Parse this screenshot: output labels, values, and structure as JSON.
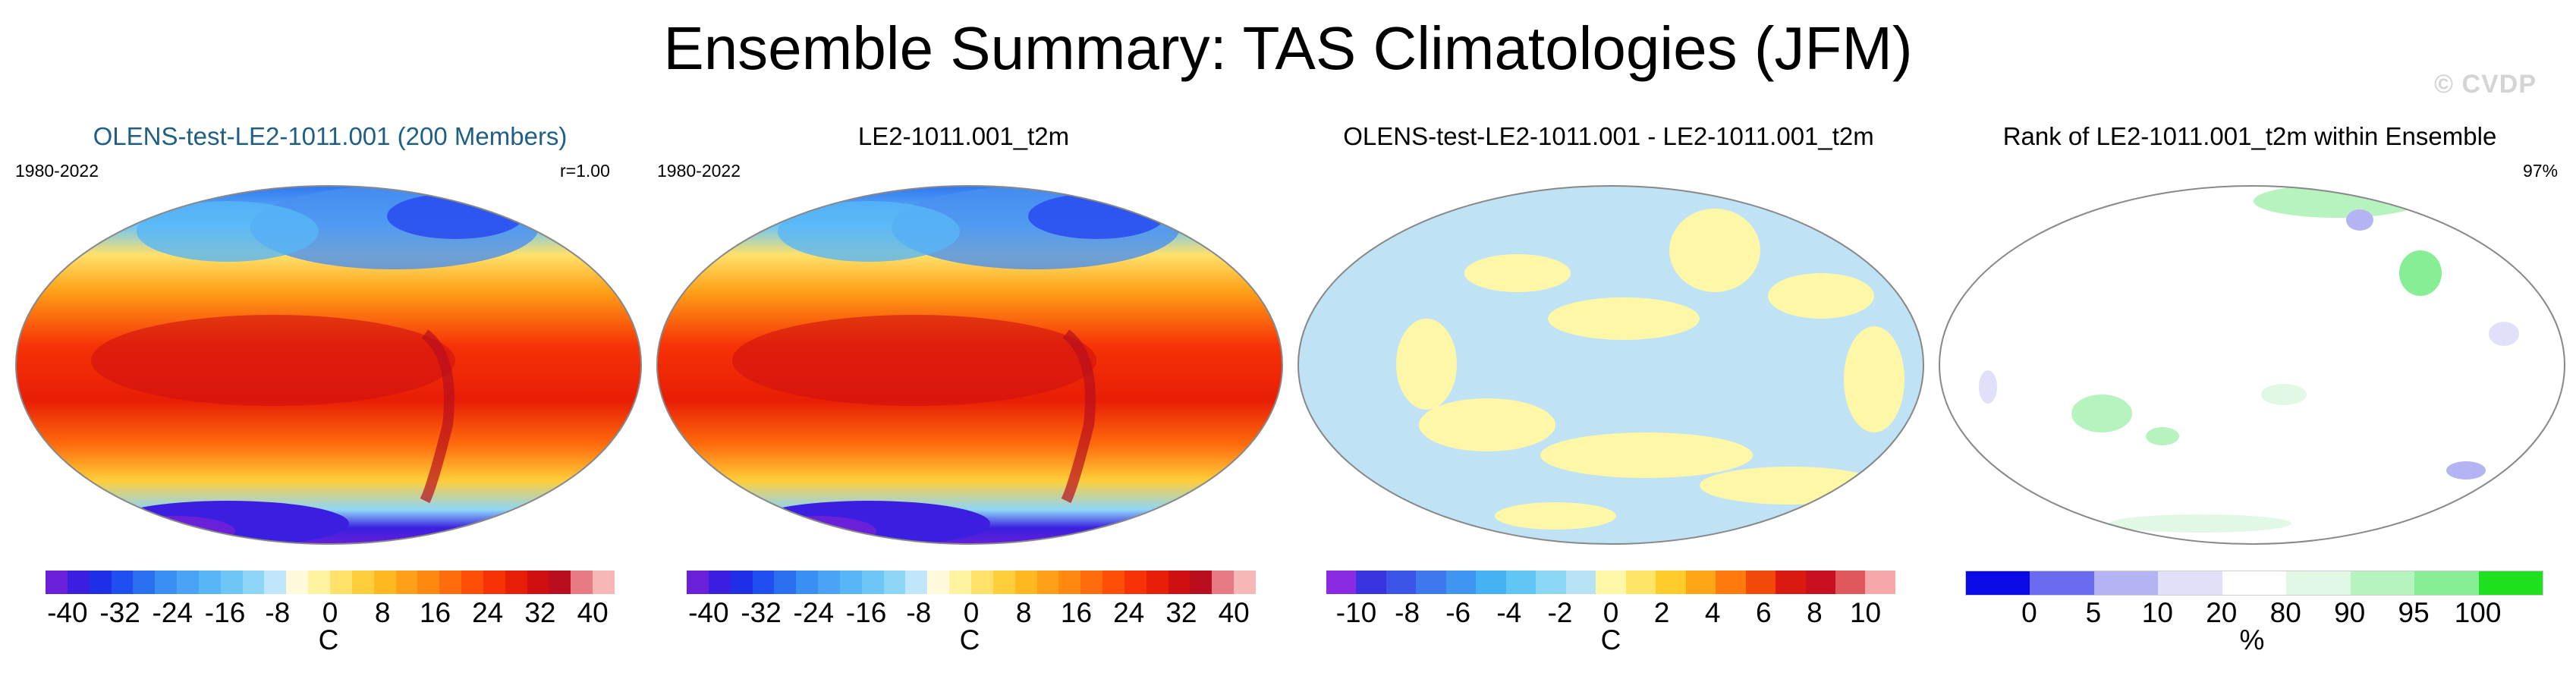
{
  "title": "Ensemble Summary: TAS Climatologies (JFM)",
  "watermark": "© CVDP",
  "panels": [
    {
      "title": "OLENS-test-LE2-1011.001 (200 Members)",
      "period": "1980-2022",
      "stat": "r=1.00",
      "map": "temperature"
    },
    {
      "title": "LE2-1011.001_t2m",
      "period": "1980-2022",
      "map": "temperature"
    },
    {
      "title": "OLENS-test-LE2-1011.001 - LE2-1011.001_t2m",
      "map": "difference"
    },
    {
      "title": "Rank of LE2-1011.001_t2m within Ensemble",
      "stat": "97%",
      "map": "rank"
    }
  ],
  "colorbars": [
    {
      "ticks": [
        "-40",
        "-32",
        "-24",
        "-16",
        "-8",
        "0",
        "8",
        "16",
        "24",
        "32",
        "40"
      ],
      "unit": "C",
      "colors": [
        "#6a1fd8",
        "#3b1fe0",
        "#1f2fe8",
        "#1f4ff0",
        "#2a6ff0",
        "#3a8ff2",
        "#4aa3f4",
        "#58b6f6",
        "#6ec6f7",
        "#8ed6f8",
        "#bfe6fa",
        "#fffadc",
        "#fff2a0",
        "#ffe16a",
        "#ffce3a",
        "#ffb820",
        "#ffa018",
        "#ff8810",
        "#ff6c0c",
        "#ff4e08",
        "#f63206",
        "#e81e06",
        "#d01010",
        "#b80e1e",
        "#e87a84",
        "#f7b7b7"
      ]
    },
    {
      "ticks": [
        "-40",
        "-32",
        "-24",
        "-16",
        "-8",
        "0",
        "8",
        "16",
        "24",
        "32",
        "40"
      ],
      "unit": "C",
      "colors": [
        "#6a1fd8",
        "#3b1fe0",
        "#1f2fe8",
        "#1f4ff0",
        "#2a6ff0",
        "#3a8ff2",
        "#4aa3f4",
        "#58b6f6",
        "#6ec6f7",
        "#8ed6f8",
        "#bfe6fa",
        "#fffadc",
        "#fff2a0",
        "#ffe16a",
        "#ffce3a",
        "#ffb820",
        "#ffa018",
        "#ff8810",
        "#ff6c0c",
        "#ff4e08",
        "#f63206",
        "#e81e06",
        "#d01010",
        "#b80e1e",
        "#e87a84",
        "#f7b7b7"
      ]
    },
    {
      "ticks": [
        "-10",
        "-8",
        "-6",
        "-4",
        "-2",
        "0",
        "2",
        "4",
        "6",
        "8",
        "10"
      ],
      "unit": "C",
      "colors": [
        "#8a2be2",
        "#3a33e0",
        "#3a55e8",
        "#3e78ee",
        "#3f96f0",
        "#45b2f3",
        "#62c6f5",
        "#8cd6f6",
        "#b6e2f4",
        "#fff7a8",
        "#ffe566",
        "#ffcc2a",
        "#ffa616",
        "#ff7a0c",
        "#f24808",
        "#d91a10",
        "#c8101e",
        "#e0575c",
        "#f6a7a7"
      ]
    },
    {
      "ticks": [
        "0",
        "5",
        "10",
        "20",
        "80",
        "90",
        "95",
        "100"
      ],
      "unit": "%",
      "colors": [
        "#0a0ae6",
        "#6b6bf0",
        "#b4b4f4",
        "#e0e0fa",
        "#ffffff",
        "#e0f8e4",
        "#b6f3bf",
        "#87ee96",
        "#1ee01e"
      ]
    }
  ]
}
